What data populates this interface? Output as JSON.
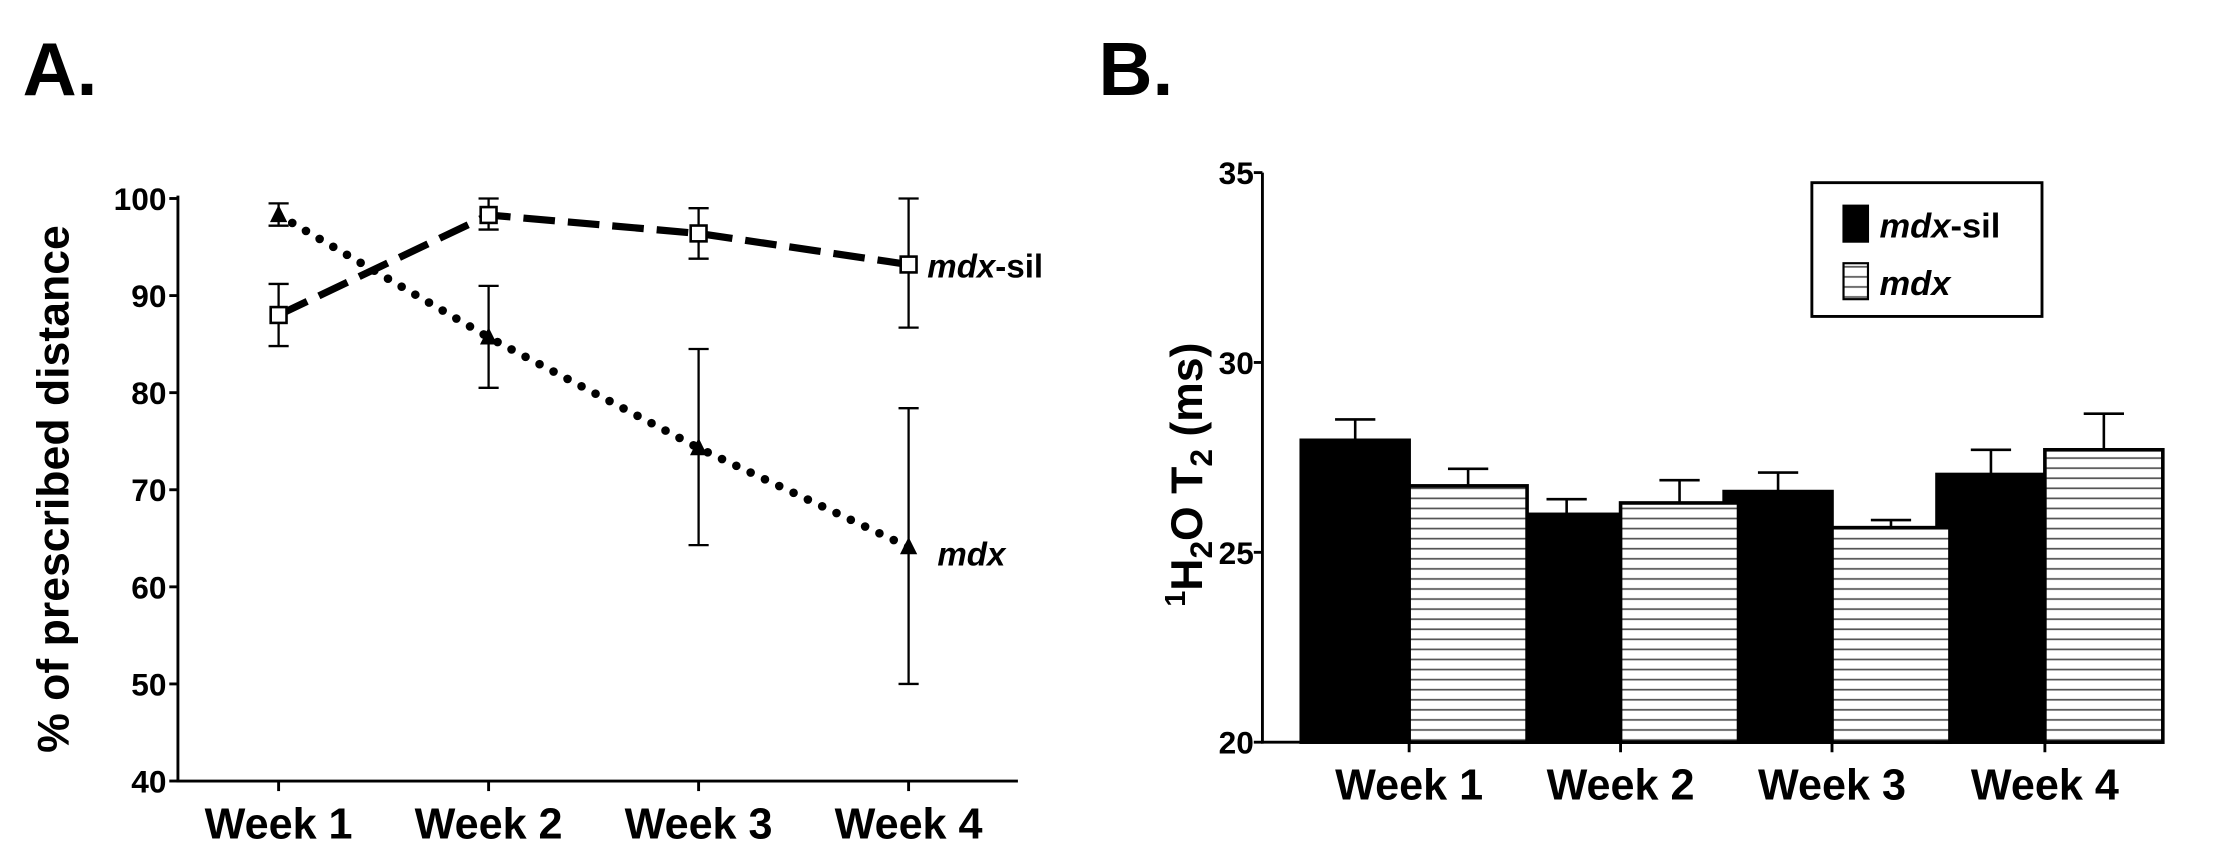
{
  "chart_data": [
    {
      "panel_label": "A.",
      "type": "line",
      "categories": [
        "Week 1",
        "Week 2",
        "Week 3",
        "Week 4"
      ],
      "ylabel": "% of prescribed distance",
      "xlabel": "",
      "ylim": [
        40,
        100
      ],
      "yticks": [
        "40",
        "50",
        "60",
        "70",
        "80",
        "90",
        "100"
      ],
      "grid": false,
      "series": [
        {
          "name": "mdx-sil",
          "name_italic": "mdx",
          "name_suffix": "-sil",
          "style": "dashed",
          "marker": "open-square",
          "values": [
            88.0,
            98.3,
            96.4,
            93.2
          ],
          "err_low": [
            84.8,
            96.8,
            93.8,
            86.7
          ],
          "err_high": [
            91.2,
            100.0,
            99.0,
            100.0
          ]
        },
        {
          "name": "mdx",
          "name_italic": "mdx",
          "name_suffix": "",
          "style": "dotted",
          "marker": "filled-triangle",
          "values": [
            98.3,
            85.7,
            74.3,
            64.1
          ],
          "err_low": [
            97.2,
            80.5,
            64.3,
            50.0
          ],
          "err_high": [
            99.5,
            91.0,
            84.5,
            78.4
          ]
        }
      ]
    },
    {
      "panel_label": "B.",
      "type": "bar",
      "categories": [
        "Week 1",
        "Week 2",
        "Week 3",
        "Week 4"
      ],
      "ylabel": "1H2O T2 (ms)",
      "ylabel_parts": {
        "sup": "1",
        "h": "H",
        "sub2": "2",
        "o": "O T",
        "sub2b": "2",
        "unit": " (ms)"
      },
      "ylim": [
        20,
        35
      ],
      "yticks": [
        "20",
        "25",
        "30",
        "35"
      ],
      "legend_position": "top-right",
      "grid": false,
      "series": [
        {
          "name": "mdx-sil",
          "name_italic": "mdx",
          "name_suffix": "-sil",
          "fill": "#000000",
          "values": [
            27.95,
            26.0,
            26.6,
            27.05
          ],
          "err": [
            0.55,
            0.4,
            0.5,
            0.65
          ]
        },
        {
          "name": "mdx",
          "name_italic": "mdx",
          "name_suffix": "",
          "fill": "horizontal-stripes",
          "values": [
            26.75,
            26.3,
            25.65,
            27.7
          ],
          "err": [
            0.45,
            0.6,
            0.2,
            0.95
          ]
        }
      ]
    }
  ]
}
